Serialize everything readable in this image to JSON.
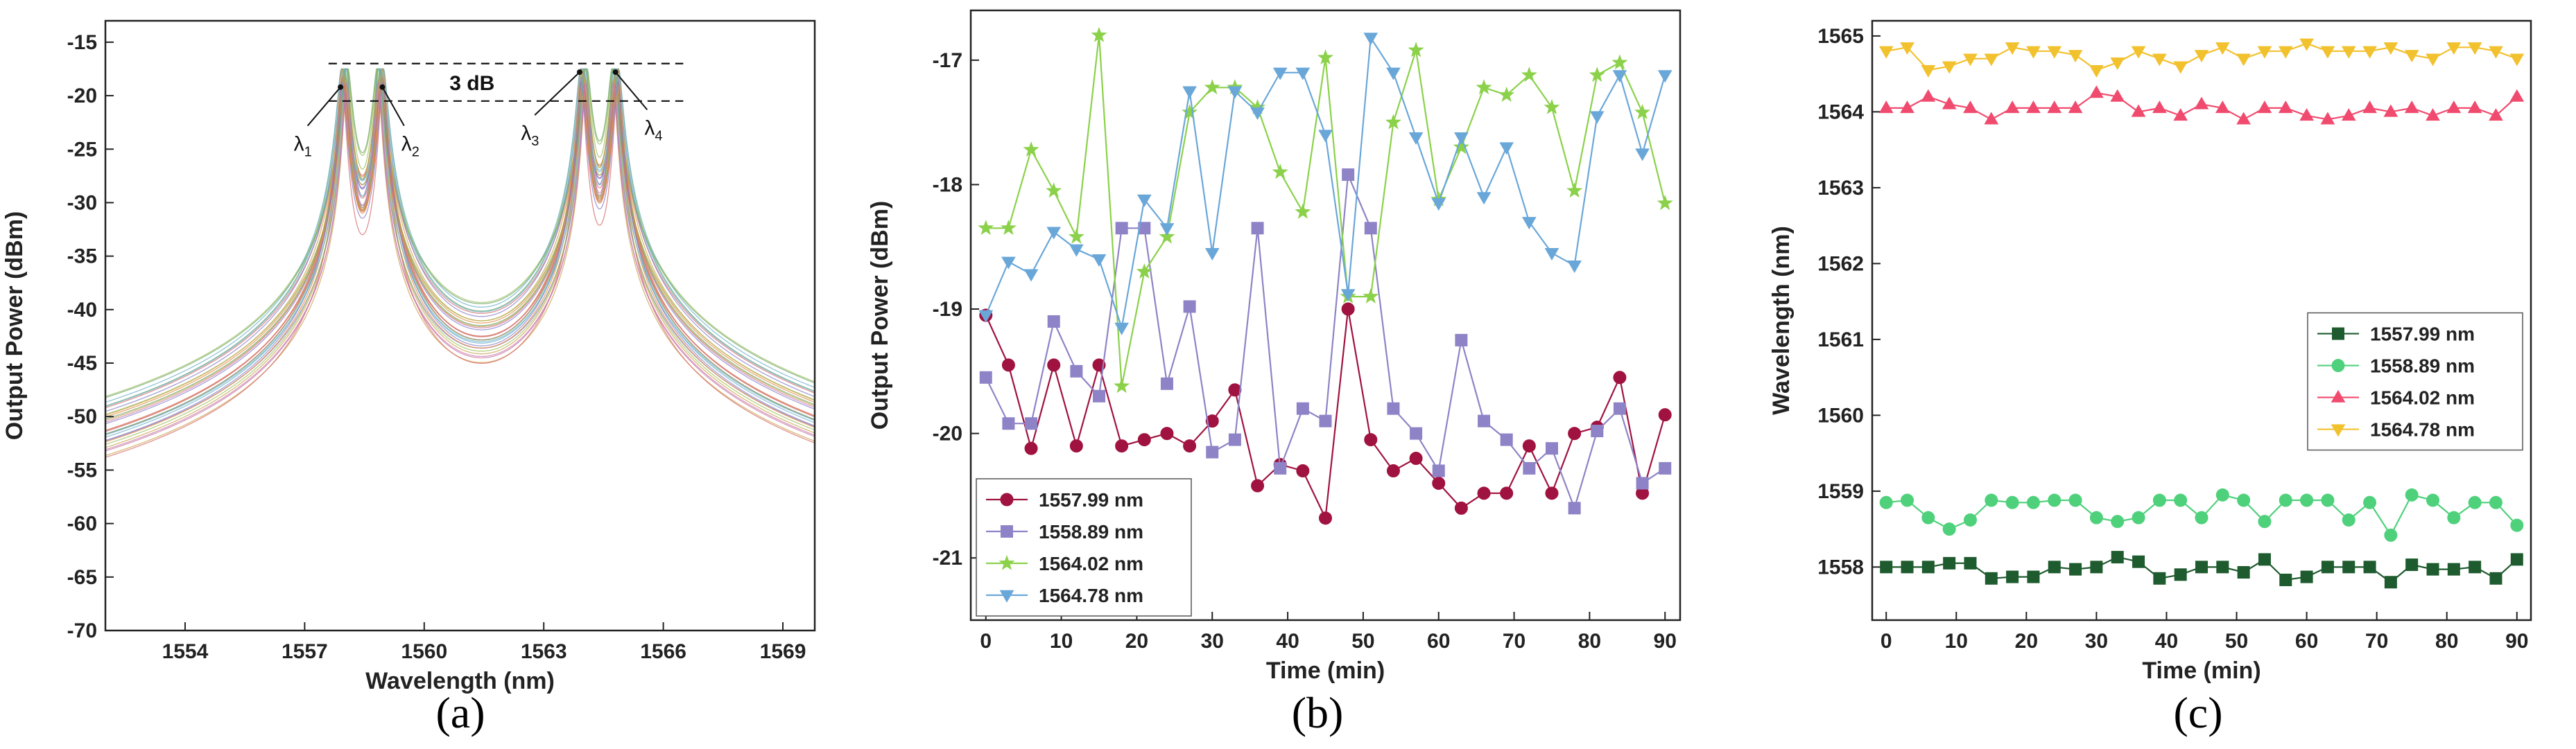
{
  "chart_data": [
    {
      "id": "a",
      "type": "line",
      "panel_label": "(a)",
      "xlabel": "Wavelength (nm)",
      "ylabel": "Output Power (dBm)",
      "xlim": [
        1552,
        1569.8
      ],
      "ylim": [
        -70,
        -13
      ],
      "xticks": [
        1554,
        1557,
        1560,
        1563,
        1566,
        1569
      ],
      "yticks": [
        -70,
        -65,
        -60,
        -55,
        -50,
        -45,
        -40,
        -35,
        -30,
        -25,
        -20,
        -15
      ],
      "peaks": [
        1558.0,
        1558.9,
        1564.0,
        1564.8
      ],
      "peak_level": -18,
      "baseline": -66.5,
      "trace_count": 30,
      "trace_colors": [
        "#d86b6b",
        "#6fa86f",
        "#c9a24a",
        "#8a7ec8",
        "#6bb0c8",
        "#c87aa8",
        "#9cbf5a",
        "#e08a3c"
      ],
      "annotations": {
        "dB_label": "3 dB",
        "line_top": -17,
        "line_bottom": -20.5,
        "lambda": [
          "λ",
          "λ",
          "λ",
          "λ"
        ],
        "lambda_sub": [
          "1",
          "2",
          "3",
          "4"
        ]
      }
    },
    {
      "id": "b",
      "type": "line",
      "panel_label": "(b)",
      "xlabel": "Time (min)",
      "ylabel": "Output Power (dBm)",
      "xlim": [
        -2,
        92
      ],
      "ylim": [
        -21.5,
        -16.6
      ],
      "xticks": [
        0,
        10,
        20,
        30,
        40,
        50,
        60,
        70,
        80,
        90
      ],
      "yticks": [
        -21,
        -20,
        -19,
        -18,
        -17
      ],
      "x": [
        0,
        3,
        6,
        9,
        12,
        15,
        18,
        21,
        24,
        27,
        30,
        33,
        36,
        39,
        42,
        45,
        48,
        51,
        54,
        57,
        60,
        63,
        66,
        69,
        72,
        75,
        78,
        81,
        84,
        87,
        90
      ],
      "series": [
        {
          "name": "1557.99 nm",
          "color": "#a0123f",
          "marker": "circle",
          "values": [
            -19.05,
            -19.45,
            -20.12,
            -19.45,
            -20.1,
            -19.45,
            -20.1,
            -20.05,
            -20.0,
            -20.1,
            -19.9,
            -19.65,
            -20.42,
            -20.25,
            -20.3,
            -20.68,
            -19.0,
            -20.05,
            -20.3,
            -20.2,
            -20.4,
            -20.6,
            -20.48,
            -20.48,
            -20.1,
            -20.48,
            -20.0,
            -19.95,
            -19.55,
            -20.48,
            -19.85
          ]
        },
        {
          "name": "1558.89 nm",
          "color": "#8e83c6",
          "marker": "square",
          "values": [
            -19.55,
            -19.92,
            -19.92,
            -19.1,
            -19.5,
            -19.7,
            -18.35,
            -18.35,
            -19.6,
            -18.98,
            -20.15,
            -20.05,
            -18.35,
            -20.28,
            -19.8,
            -19.9,
            -17.92,
            -18.35,
            -19.8,
            -20.0,
            -20.3,
            -19.25,
            -19.9,
            -20.05,
            -20.28,
            -20.12,
            -20.6,
            -19.98,
            -19.8,
            -20.4,
            -20.28
          ]
        },
        {
          "name": "1564.02 nm",
          "color": "#8bd14a",
          "marker": "star",
          "values": [
            -18.35,
            -18.35,
            -17.72,
            -18.05,
            -18.42,
            -16.8,
            -19.62,
            -18.7,
            -18.42,
            -17.42,
            -17.22,
            -17.22,
            -17.38,
            -17.9,
            -18.22,
            -16.98,
            -18.9,
            -18.9,
            -17.5,
            -16.92,
            -18.12,
            -17.7,
            -17.22,
            -17.28,
            -17.12,
            -17.38,
            -18.05,
            -17.12,
            -17.02,
            -17.42,
            -18.15
          ]
        },
        {
          "name": "1564.78 nm",
          "color": "#6aa7d9",
          "marker": "triangle-down",
          "values": [
            -19.05,
            -18.62,
            -18.72,
            -18.38,
            -18.52,
            -18.6,
            -19.15,
            -18.12,
            -18.35,
            -17.25,
            -18.55,
            -17.25,
            -17.42,
            -17.1,
            -17.1,
            -17.6,
            -18.88,
            -16.82,
            -17.1,
            -17.62,
            -18.15,
            -17.62,
            -18.1,
            -17.7,
            -18.3,
            -18.55,
            -18.65,
            -17.45,
            -17.12,
            -17.75,
            -17.12
          ]
        }
      ],
      "legend_position": "bottom-left"
    },
    {
      "id": "c",
      "type": "line",
      "panel_label": "(c)",
      "xlabel": "Time (min)",
      "ylabel": "Wavelength (nm)",
      "xlim": [
        -2,
        92
      ],
      "ylim": [
        1557.3,
        1565.2
      ],
      "xticks": [
        0,
        10,
        20,
        30,
        40,
        50,
        60,
        70,
        80,
        90
      ],
      "yticks": [
        1558,
        1559,
        1560,
        1561,
        1562,
        1563,
        1564,
        1565
      ],
      "x": [
        0,
        3,
        6,
        9,
        12,
        15,
        18,
        21,
        24,
        27,
        30,
        33,
        36,
        39,
        42,
        45,
        48,
        51,
        54,
        57,
        60,
        63,
        66,
        69,
        72,
        75,
        78,
        81,
        84,
        87,
        90
      ],
      "series": [
        {
          "name": "1557.99 nm",
          "color": "#1e5b2e",
          "marker": "square",
          "values": [
            1558.0,
            1558.0,
            1558.0,
            1558.05,
            1558.05,
            1557.85,
            1557.87,
            1557.87,
            1558.0,
            1557.97,
            1558.0,
            1558.13,
            1558.07,
            1557.85,
            1557.9,
            1558.0,
            1558.0,
            1557.93,
            1558.1,
            1557.83,
            1557.87,
            1558.0,
            1558.0,
            1558.0,
            1557.8,
            1558.03,
            1557.97,
            1557.97,
            1558.0,
            1557.85,
            1558.1
          ]
        },
        {
          "name": "1558.89 nm",
          "color": "#4fd17c",
          "marker": "circle",
          "values": [
            1558.85,
            1558.88,
            1558.65,
            1558.5,
            1558.62,
            1558.88,
            1558.85,
            1558.85,
            1558.88,
            1558.88,
            1558.65,
            1558.6,
            1558.65,
            1558.88,
            1558.88,
            1558.65,
            1558.95,
            1558.88,
            1558.6,
            1558.88,
            1558.88,
            1558.88,
            1558.62,
            1558.85,
            1558.42,
            1558.95,
            1558.88,
            1558.65,
            1558.85,
            1558.85,
            1558.55
          ]
        },
        {
          "name": "1564.02 nm",
          "color": "#f04b6e",
          "marker": "triangle-up",
          "values": [
            1564.05,
            1564.05,
            1564.2,
            1564.1,
            1564.05,
            1563.9,
            1564.05,
            1564.05,
            1564.05,
            1564.05,
            1564.25,
            1564.2,
            1564.0,
            1564.05,
            1563.95,
            1564.1,
            1564.05,
            1563.9,
            1564.05,
            1564.05,
            1563.95,
            1563.9,
            1563.95,
            1564.05,
            1564.0,
            1564.05,
            1563.95,
            1564.05,
            1564.05,
            1563.95,
            1564.2
          ]
        },
        {
          "name": "1564.78 nm",
          "color": "#f2c12e",
          "marker": "triangle-down",
          "values": [
            1564.8,
            1564.85,
            1564.55,
            1564.6,
            1564.7,
            1564.7,
            1564.85,
            1564.8,
            1564.8,
            1564.75,
            1564.55,
            1564.65,
            1564.8,
            1564.7,
            1564.6,
            1564.75,
            1564.85,
            1564.7,
            1564.8,
            1564.8,
            1564.9,
            1564.8,
            1564.8,
            1564.8,
            1564.85,
            1564.75,
            1564.7,
            1564.85,
            1564.85,
            1564.8,
            1564.7
          ]
        }
      ],
      "legend_position": "center-right"
    }
  ]
}
